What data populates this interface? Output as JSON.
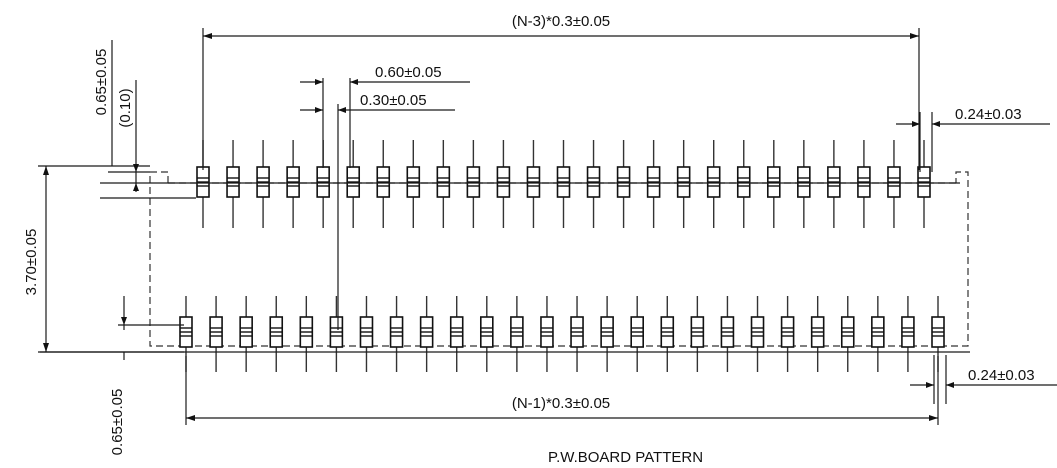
{
  "drawing": {
    "dim_top_pitch": "(N-3)*0.3±0.05",
    "dim_bottom_pitch": "(N-1)*0.3±0.05",
    "dim_pad_pitch": "0.60±0.05",
    "dim_pad_half_pitch": "0.30±0.05",
    "dim_pad_width_top": "0.24±0.03",
    "dim_pad_width_bottom": "0.24±0.03",
    "dim_height": "3.70±0.05",
    "dim_top_offset": "0.65±0.05",
    "dim_top_offset_ref": "(0.10)",
    "dim_bottom_offset": "0.65±0.05",
    "caption": "P.W.BOARD PATTERN"
  },
  "pins": {
    "top_row_count": 25,
    "bottom_row_count": 26
  }
}
